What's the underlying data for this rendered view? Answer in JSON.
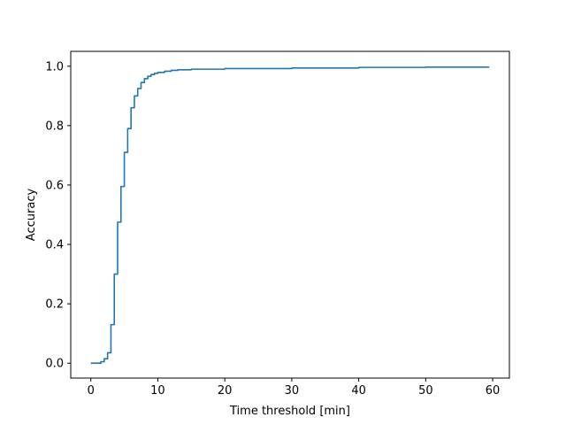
{
  "chart_data": {
    "type": "line",
    "title": "",
    "xlabel": "Time threshold [min]",
    "ylabel": "Accuracy",
    "xlim": [
      -3.0,
      62.5
    ],
    "ylim": [
      -0.05,
      1.05
    ],
    "xticks": [
      0,
      10,
      20,
      30,
      40,
      50,
      60
    ],
    "yticks": [
      0.0,
      0.2,
      0.4,
      0.6,
      0.8,
      1.0
    ],
    "xtick_labels": [
      "0",
      "10",
      "20",
      "30",
      "40",
      "50",
      "60"
    ],
    "ytick_labels": [
      "0.0",
      "0.2",
      "0.4",
      "0.6",
      "0.8",
      "1.0"
    ],
    "grid": false,
    "legend": "none",
    "step": "post",
    "series": [
      {
        "color": "#1f77b4",
        "x": [
          0,
          1,
          1.5,
          2,
          2.5,
          3,
          3.5,
          4,
          4.5,
          5,
          5.5,
          6,
          6.5,
          7,
          7.5,
          8,
          8.5,
          9,
          9.5,
          10,
          11,
          12,
          13,
          15,
          20,
          30,
          40,
          50,
          59.5
        ],
        "y": [
          0.0,
          0.0,
          0.005,
          0.015,
          0.035,
          0.13,
          0.3,
          0.475,
          0.595,
          0.71,
          0.79,
          0.86,
          0.9,
          0.925,
          0.945,
          0.958,
          0.966,
          0.972,
          0.976,
          0.979,
          0.983,
          0.986,
          0.988,
          0.99,
          0.992,
          0.994,
          0.996,
          0.997,
          0.997
        ]
      }
    ]
  }
}
